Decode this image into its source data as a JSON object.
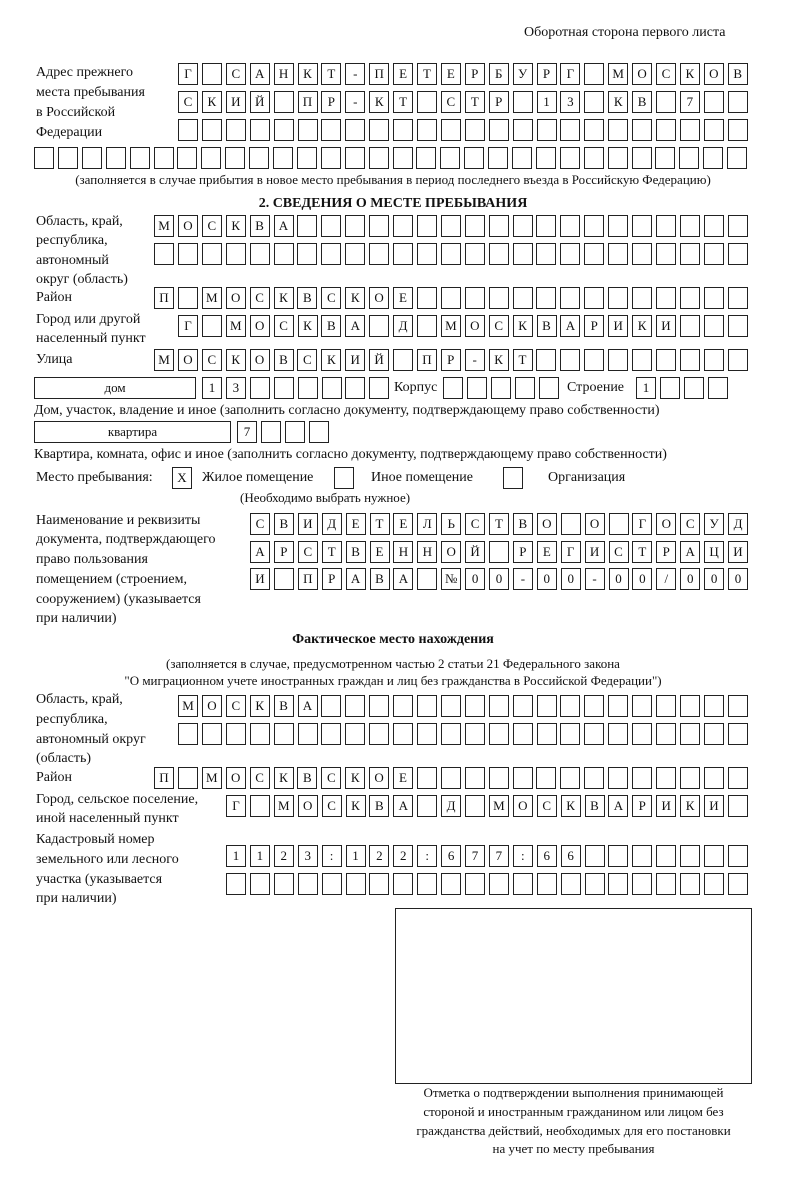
{
  "page_side": "Оборотная сторона первого листа",
  "prev_address": {
    "label": [
      "Адрес прежнего",
      "места пребывания",
      "в Российской",
      "Федерации"
    ],
    "rows": [
      [
        "Г",
        "",
        "С",
        "А",
        "Н",
        "К",
        "Т",
        "-",
        "П",
        "Е",
        "Т",
        "Е",
        "Р",
        "Б",
        "У",
        "Р",
        "Г",
        "",
        "М",
        "О",
        "С",
        "К",
        "О",
        "В"
      ],
      [
        "С",
        "К",
        "И",
        "Й",
        "",
        "П",
        "Р",
        "-",
        "К",
        "Т",
        "",
        "С",
        "Т",
        "Р",
        "",
        "1",
        "3",
        "",
        "К",
        "В",
        "",
        "7",
        "",
        ""
      ],
      [
        "",
        "",
        "",
        "",
        "",
        "",
        "",
        "",
        "",
        "",
        "",
        "",
        "",
        "",
        "",
        "",
        "",
        "",
        "",
        "",
        "",
        "",
        "",
        ""
      ],
      [
        "",
        "",
        "",
        "",
        "",
        "",
        "",
        "",
        "",
        "",
        "",
        "",
        "",
        "",
        "",
        "",
        "",
        "",
        "",
        "",
        "",
        "",
        "",
        "",
        "",
        "",
        "",
        "",
        "",
        ""
      ]
    ],
    "note": "(заполняется в случае прибытия в новое место пребывания в период последнего въезда в Российскую Федерацию)"
  },
  "section2": {
    "title": "2. СВЕДЕНИЯ О МЕСТЕ ПРЕБЫВАНИЯ",
    "region_label": [
      "Область, край,",
      "республика,",
      "автономный",
      "округ (область)"
    ],
    "region_rows": [
      [
        "М",
        "О",
        "С",
        "К",
        "В",
        "А",
        "",
        "",
        "",
        "",
        "",
        "",
        "",
        "",
        "",
        "",
        "",
        "",
        "",
        "",
        "",
        "",
        "",
        "",
        ""
      ],
      [
        "",
        "",
        "",
        "",
        "",
        "",
        "",
        "",
        "",
        "",
        "",
        "",
        "",
        "",
        "",
        "",
        "",
        "",
        "",
        "",
        "",
        "",
        "",
        "",
        ""
      ]
    ],
    "district_label": "Район",
    "district_row": [
      "П",
      "",
      "М",
      "О",
      "С",
      "К",
      "В",
      "С",
      "К",
      "О",
      "Е",
      "",
      "",
      "",
      "",
      "",
      "",
      "",
      "",
      "",
      "",
      "",
      "",
      "",
      ""
    ],
    "city_label": [
      "Город или другой",
      "населенный пункт"
    ],
    "city_row": [
      "Г",
      "",
      "М",
      "О",
      "С",
      "К",
      "В",
      "А",
      "",
      "Д",
      "",
      "М",
      "О",
      "С",
      "К",
      "В",
      "А",
      "Р",
      "И",
      "К",
      "И",
      "",
      "",
      ""
    ],
    "street_label": "Улица",
    "street_row": [
      "М",
      "О",
      "С",
      "К",
      "О",
      "В",
      "С",
      "К",
      "И",
      "Й",
      "",
      "П",
      "Р",
      "-",
      "К",
      "Т",
      "",
      "",
      "",
      "",
      "",
      "",
      "",
      "",
      ""
    ],
    "house": {
      "type": "дом",
      "number": [
        "1",
        "3",
        "",
        "",
        "",
        "",
        "",
        ""
      ],
      "korpus_label": "Корпус",
      "korpus": [
        "",
        "",
        "",
        "",
        ""
      ],
      "stroenie_label": "Строение",
      "stroenie": [
        "1",
        "",
        "",
        ""
      ],
      "note": "Дом, участок, владение и иное (заполнить согласно документу, подтверждающему право собственности)"
    },
    "apartment": {
      "type": "квартира",
      "number": [
        "7",
        "",
        "",
        ""
      ],
      "note": "Квартира, комната, офис и иное (заполнить согласно документу, подтверждающему право собственности)"
    },
    "stay_place": {
      "label": "Место пребывания:",
      "options": [
        {
          "label": "Жилое помещение",
          "mark": "X",
          "checked": true
        },
        {
          "label": "Иное помещение",
          "mark": "",
          "checked": false
        },
        {
          "label": "Организация",
          "mark": "",
          "checked": false
        }
      ],
      "note": "(Необходимо выбрать нужное)"
    },
    "document_label": [
      "Наименование и реквизиты",
      "документа, подтверждающего",
      "право пользования",
      "помещением (строением,",
      "сооружением) (указывается",
      "при наличии)"
    ],
    "document_rows": [
      [
        "С",
        "В",
        "И",
        "Д",
        "Е",
        "Т",
        "Е",
        "Л",
        "Ь",
        "С",
        "Т",
        "В",
        "О",
        "",
        "О",
        "",
        "Г",
        "О",
        "С",
        "У",
        "Д"
      ],
      [
        "А",
        "Р",
        "С",
        "Т",
        "В",
        "Е",
        "Н",
        "Н",
        "О",
        "Й",
        "",
        "Р",
        "Е",
        "Г",
        "И",
        "С",
        "Т",
        "Р",
        "А",
        "Ц",
        "И"
      ],
      [
        "И",
        "",
        "П",
        "Р",
        "А",
        "В",
        "А",
        "",
        "№",
        "0",
        "0",
        "-",
        "0",
        "0",
        "-",
        "0",
        "0",
        "/",
        "0",
        "0",
        "0"
      ]
    ]
  },
  "actual": {
    "title": "Фактическое место нахождения",
    "note": [
      "(заполняется в случае, предусмотренном частью 2 статьи 21 Федерального закона",
      "\"О миграционном учете иностранных граждан и лиц без гражданства в Российской Федерации\")"
    ],
    "region_label": [
      "Область, край,",
      "республика,",
      "автономный округ",
      "(область)"
    ],
    "region_rows": [
      [
        "М",
        "О",
        "С",
        "К",
        "В",
        "А",
        "",
        "",
        "",
        "",
        "",
        "",
        "",
        "",
        "",
        "",
        "",
        "",
        "",
        "",
        "",
        "",
        "",
        ""
      ],
      [
        "",
        "",
        "",
        "",
        "",
        "",
        "",
        "",
        "",
        "",
        "",
        "",
        "",
        "",
        "",
        "",
        "",
        "",
        "",
        "",
        "",
        "",
        "",
        ""
      ]
    ],
    "district_label": "Район",
    "district_row": [
      "П",
      "",
      "М",
      "О",
      "С",
      "К",
      "В",
      "С",
      "К",
      "О",
      "Е",
      "",
      "",
      "",
      "",
      "",
      "",
      "",
      "",
      "",
      "",
      "",
      "",
      "",
      ""
    ],
    "city_label": [
      "Город, сельское поселение,",
      "иной населенный пункт"
    ],
    "city_row": [
      "Г",
      "",
      "М",
      "О",
      "С",
      "К",
      "В",
      "А",
      "",
      "Д",
      "",
      "М",
      "О",
      "С",
      "К",
      "В",
      "А",
      "Р",
      "И",
      "К",
      "И",
      ""
    ],
    "cadastral_label": [
      "Кадастровый номер",
      "земельного или лесного",
      "участка (указывается",
      "при наличии)"
    ],
    "cadastral_rows": [
      [
        "1",
        "1",
        "2",
        "3",
        ":",
        "1",
        "2",
        "2",
        ":",
        "6",
        "7",
        "7",
        ":",
        "6",
        "6",
        "",
        "",
        "",
        "",
        "",
        "",
        ""
      ],
      [
        "",
        "",
        "",
        "",
        "",
        "",
        "",
        "",
        "",
        "",
        "",
        "",
        "",
        "",
        "",
        "",
        "",
        "",
        "",
        "",
        "",
        ""
      ]
    ]
  },
  "confirmation": {
    "caption": [
      "Отметка о подтверждении выполнения принимающей",
      "стороной и иностранным гражданином или лицом без",
      "гражданства действий, необходимых для его постановки",
      "на учет по месту пребывания"
    ]
  }
}
